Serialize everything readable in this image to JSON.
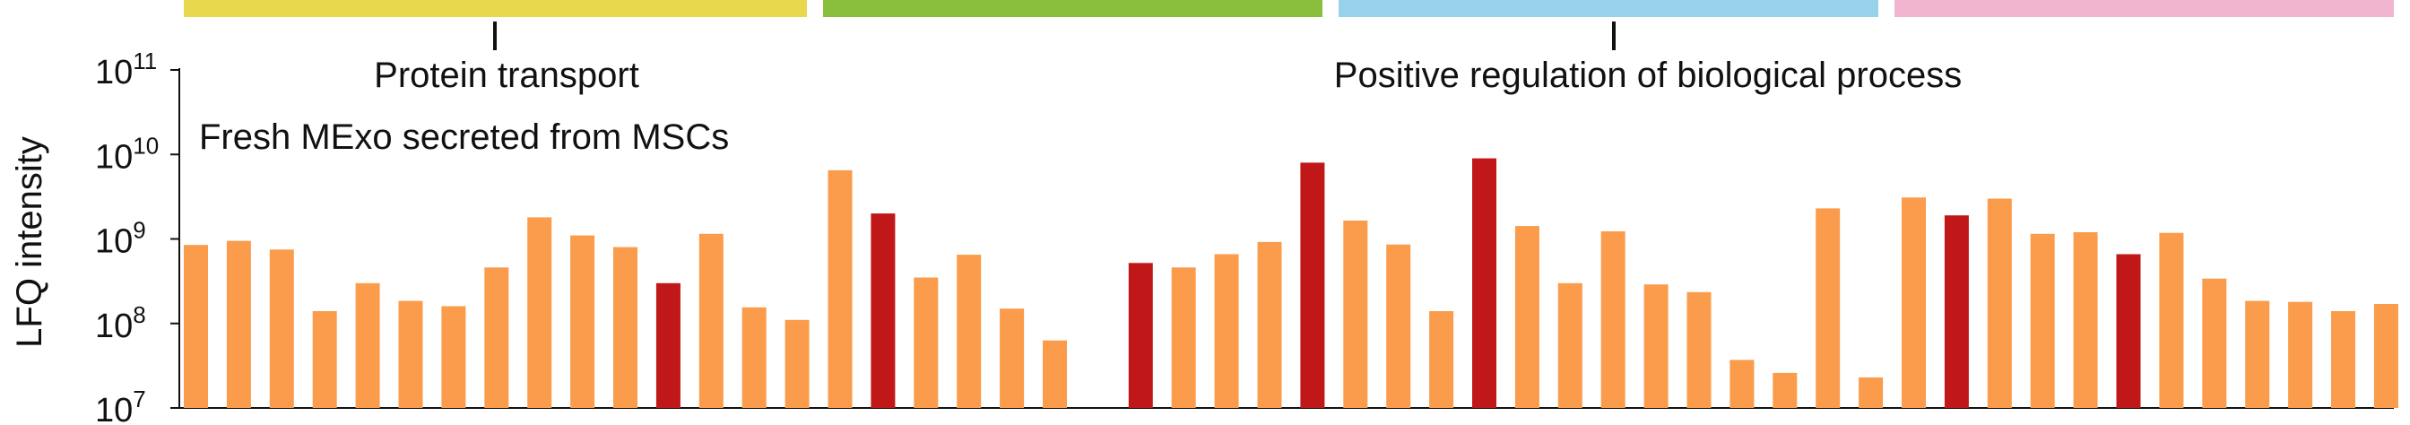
{
  "chart_data": {
    "type": "bar",
    "title": "Fresh MExo secreted from MSCs",
    "ylabel": "LFQ intensity",
    "yscale": "log",
    "ylim": [
      10000000,
      100000000000
    ],
    "yticks": [
      {
        "base": "10",
        "exp": "7",
        "value": 10000000
      },
      {
        "base": "10",
        "exp": "8",
        "value": 100000000
      },
      {
        "base": "10",
        "exp": "9",
        "value": 1000000000
      },
      {
        "base": "10",
        "exp": "10",
        "value": 10000000000
      },
      {
        "base": "10",
        "exp": "11",
        "value": 100000000000
      }
    ],
    "grid": false,
    "group_bars": {
      "colors": [
        "#e8d84e",
        "#8abf3d",
        "#98d2ea",
        "#f2b5d0"
      ]
    },
    "annotations": [
      "Protein transport",
      "Positive regulation of biological process"
    ],
    "colors": {
      "orange": "#fa9c4b",
      "red": "#c01818"
    },
    "values": [
      850000000,
      950000000,
      750000000,
      140000000,
      300000000,
      185000000,
      160000000,
      460000000,
      1800000000,
      1100000000,
      800000000,
      300000000,
      1150000000,
      155000000,
      110000000,
      6500000000,
      2000000000,
      350000000,
      650000000,
      150000000,
      63000000,
      null,
      520000000,
      460000000,
      660000000,
      920000000,
      8000000000,
      1650000000,
      860000000,
      140000000,
      9000000000,
      1420000000,
      300000000,
      1230000000,
      290000000,
      235000000,
      37000000,
      26000000,
      2300000000,
      23000000,
      3100000000,
      1900000000,
      3000000000,
      1150000000,
      1200000000,
      660000000,
      1180000000,
      340000000,
      185000000,
      180000000,
      140000000,
      170000000
    ],
    "highlight": [
      "orange",
      "orange",
      "orange",
      "orange",
      "orange",
      "orange",
      "orange",
      "orange",
      "orange",
      "orange",
      "orange",
      "red",
      "orange",
      "orange",
      "orange",
      "orange",
      "red",
      "orange",
      "orange",
      "orange",
      "orange",
      "none",
      "red",
      "orange",
      "orange",
      "orange",
      "red",
      "orange",
      "orange",
      "orange",
      "red",
      "orange",
      "orange",
      "orange",
      "orange",
      "orange",
      "orange",
      "orange",
      "orange",
      "orange",
      "orange",
      "red",
      "orange",
      "orange",
      "orange",
      "red",
      "orange",
      "orange",
      "orange",
      "orange",
      "orange",
      "orange"
    ]
  }
}
